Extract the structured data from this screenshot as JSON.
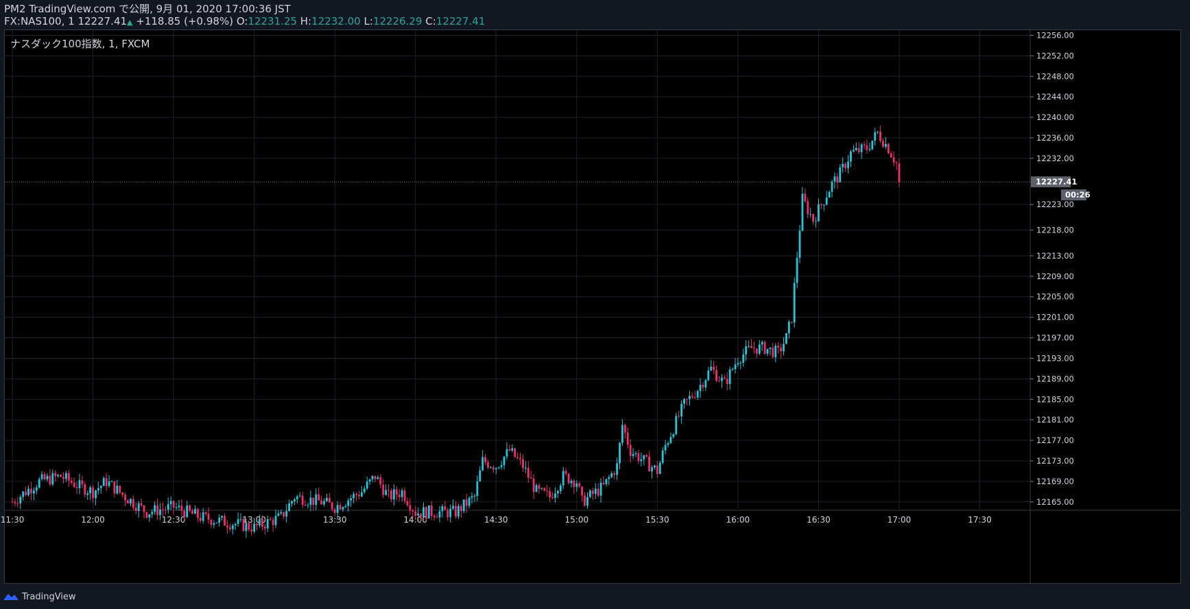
{
  "header": {
    "line1": "PM2 TradingView.com で公開, 9月 01, 2020 17:00:36 JST",
    "symbol": "FX:NAS100, 1",
    "last": "12227.41",
    "change": "+118.85 (+0.98%)",
    "o_label": "O:",
    "o_value": "12231.25",
    "h_label": "H:",
    "h_value": "12232.00",
    "l_label": "L:",
    "l_value": "12226.29",
    "c_label": "C:",
    "c_value": "12227.41"
  },
  "pane_label": "ナスダック100指数, 1, FXCM",
  "footer": {
    "brand": "TradingView"
  },
  "colors": {
    "up": "#26c6da",
    "down": "#ef2f6b",
    "grid": "#1e222d",
    "axis_text": "#d1d4dc",
    "background": "#000000"
  },
  "chart_data": {
    "type": "candlestick",
    "interval_minutes": 1,
    "current_price": 12227.41,
    "countdown": "00:26",
    "x_ticks": [
      "11:30",
      "12:00",
      "12:30",
      "13:00",
      "13:30",
      "14:00",
      "14:30",
      "15:00",
      "15:30",
      "16:00",
      "16:30",
      "17:00",
      "17:30"
    ],
    "y_ticks": [
      12256.0,
      12252.0,
      12248.0,
      12244.0,
      12240.0,
      12236.0,
      12232.0,
      12223.0,
      12218.0,
      12213.0,
      12209.0,
      12205.0,
      12201.0,
      12197.0,
      12193.0,
      12189.0,
      12185.0,
      12181.0,
      12177.0,
      12173.0,
      12169.0,
      12165.0
    ],
    "keypoints": [
      [
        "11:30",
        12165
      ],
      [
        "11:40",
        12169
      ],
      [
        "11:48",
        12170
      ],
      [
        "11:55",
        12168
      ],
      [
        "12:00",
        12167
      ],
      [
        "12:05",
        12169
      ],
      [
        "12:12",
        12166
      ],
      [
        "12:20",
        12163
      ],
      [
        "12:30",
        12164
      ],
      [
        "12:40",
        12162
      ],
      [
        "13:00",
        12160
      ],
      [
        "13:10",
        12162
      ],
      [
        "13:15",
        12166
      ],
      [
        "13:25",
        12165
      ],
      [
        "13:30",
        12164
      ],
      [
        "13:40",
        12167
      ],
      [
        "13:45",
        12170
      ],
      [
        "13:50",
        12166
      ],
      [
        "13:55",
        12167
      ],
      [
        "14:00",
        12163
      ],
      [
        "14:15",
        12163
      ],
      [
        "14:22",
        12166
      ],
      [
        "14:25",
        12173
      ],
      [
        "14:30",
        12172
      ],
      [
        "14:35",
        12175
      ],
      [
        "14:40",
        12172
      ],
      [
        "14:45",
        12167
      ],
      [
        "14:50",
        12166
      ],
      [
        "14:55",
        12170
      ],
      [
        "15:00",
        12169
      ],
      [
        "15:02",
        12165
      ],
      [
        "15:10",
        12168
      ],
      [
        "15:15",
        12172
      ],
      [
        "15:17",
        12180
      ],
      [
        "15:20",
        12175
      ],
      [
        "15:25",
        12173
      ],
      [
        "15:30",
        12171
      ],
      [
        "15:33",
        12176
      ],
      [
        "15:40",
        12184
      ],
      [
        "15:45",
        12187
      ],
      [
        "15:50",
        12191
      ],
      [
        "15:55",
        12188
      ],
      [
        "16:00",
        12193
      ],
      [
        "16:05",
        12195
      ],
      [
        "16:10",
        12195
      ],
      [
        "16:15",
        12194
      ],
      [
        "16:18",
        12197
      ],
      [
        "16:20",
        12201
      ],
      [
        "16:22",
        12213
      ],
      [
        "16:24",
        12224
      ],
      [
        "16:28",
        12220
      ],
      [
        "16:32",
        12224
      ],
      [
        "16:35",
        12227
      ],
      [
        "16:38",
        12229
      ],
      [
        "16:42",
        12233
      ],
      [
        "16:48",
        12234
      ],
      [
        "16:52",
        12237
      ],
      [
        "16:56",
        12234
      ],
      [
        "17:00",
        12230
      ]
    ],
    "xlim": [
      "11:30",
      "17:50"
    ],
    "ylim": [
      12163.5,
      12257
    ]
  }
}
